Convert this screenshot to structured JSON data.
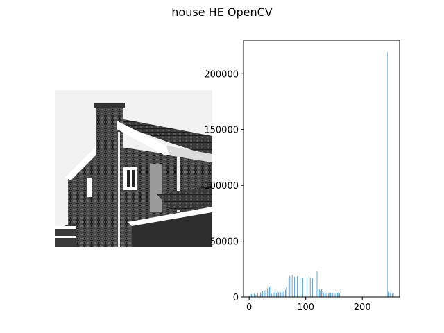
{
  "figure": {
    "title": "house HE OpenCV"
  },
  "image_panel": {
    "description_icon": "house-photo-equalized"
  },
  "chart_data": {
    "type": "bar",
    "title": "",
    "xlabel": "",
    "ylabel": "",
    "xlim": [
      -10,
      266
    ],
    "ylim": [
      0,
      230000
    ],
    "xticks": [
      0,
      100,
      200
    ],
    "yticks": [
      0,
      50000,
      100000,
      150000,
      200000
    ],
    "bar_color": "#1f77b4",
    "x": [
      0,
      2,
      4,
      6,
      9,
      12,
      15,
      18,
      20,
      22,
      24,
      26,
      28,
      30,
      32,
      34,
      36,
      38,
      40,
      42,
      44,
      46,
      48,
      50,
      52,
      54,
      56,
      58,
      60,
      62,
      64,
      66,
      70,
      72,
      76,
      80,
      85,
      90,
      95,
      102,
      108,
      112,
      118,
      120,
      122,
      124,
      126,
      128,
      130,
      132,
      134,
      136,
      138,
      140,
      142,
      144,
      146,
      148,
      150,
      152,
      154,
      156,
      158,
      160,
      162,
      245,
      247,
      249,
      251,
      253,
      255
    ],
    "values": [
      1000,
      3500,
      2500,
      1500,
      3000,
      2000,
      3500,
      2500,
      4000,
      3000,
      5500,
      3500,
      6000,
      4500,
      8000,
      5000,
      9000,
      10000,
      3000,
      4500,
      4000,
      5000,
      3500,
      5000,
      4000,
      4500,
      4000,
      6000,
      4500,
      8000,
      6500,
      9000,
      17000,
      19000,
      20000,
      18000,
      18500,
      17000,
      17500,
      18500,
      17500,
      17000,
      16000,
      23000,
      7500,
      7000,
      5500,
      7000,
      5000,
      4000,
      3500,
      3000,
      4500,
      3000,
      4000,
      3500,
      4000,
      3500,
      4500,
      3000,
      4000,
      3500,
      4000,
      3000,
      7000,
      219500,
      4500,
      3500,
      4000,
      3000,
      3500
    ]
  }
}
